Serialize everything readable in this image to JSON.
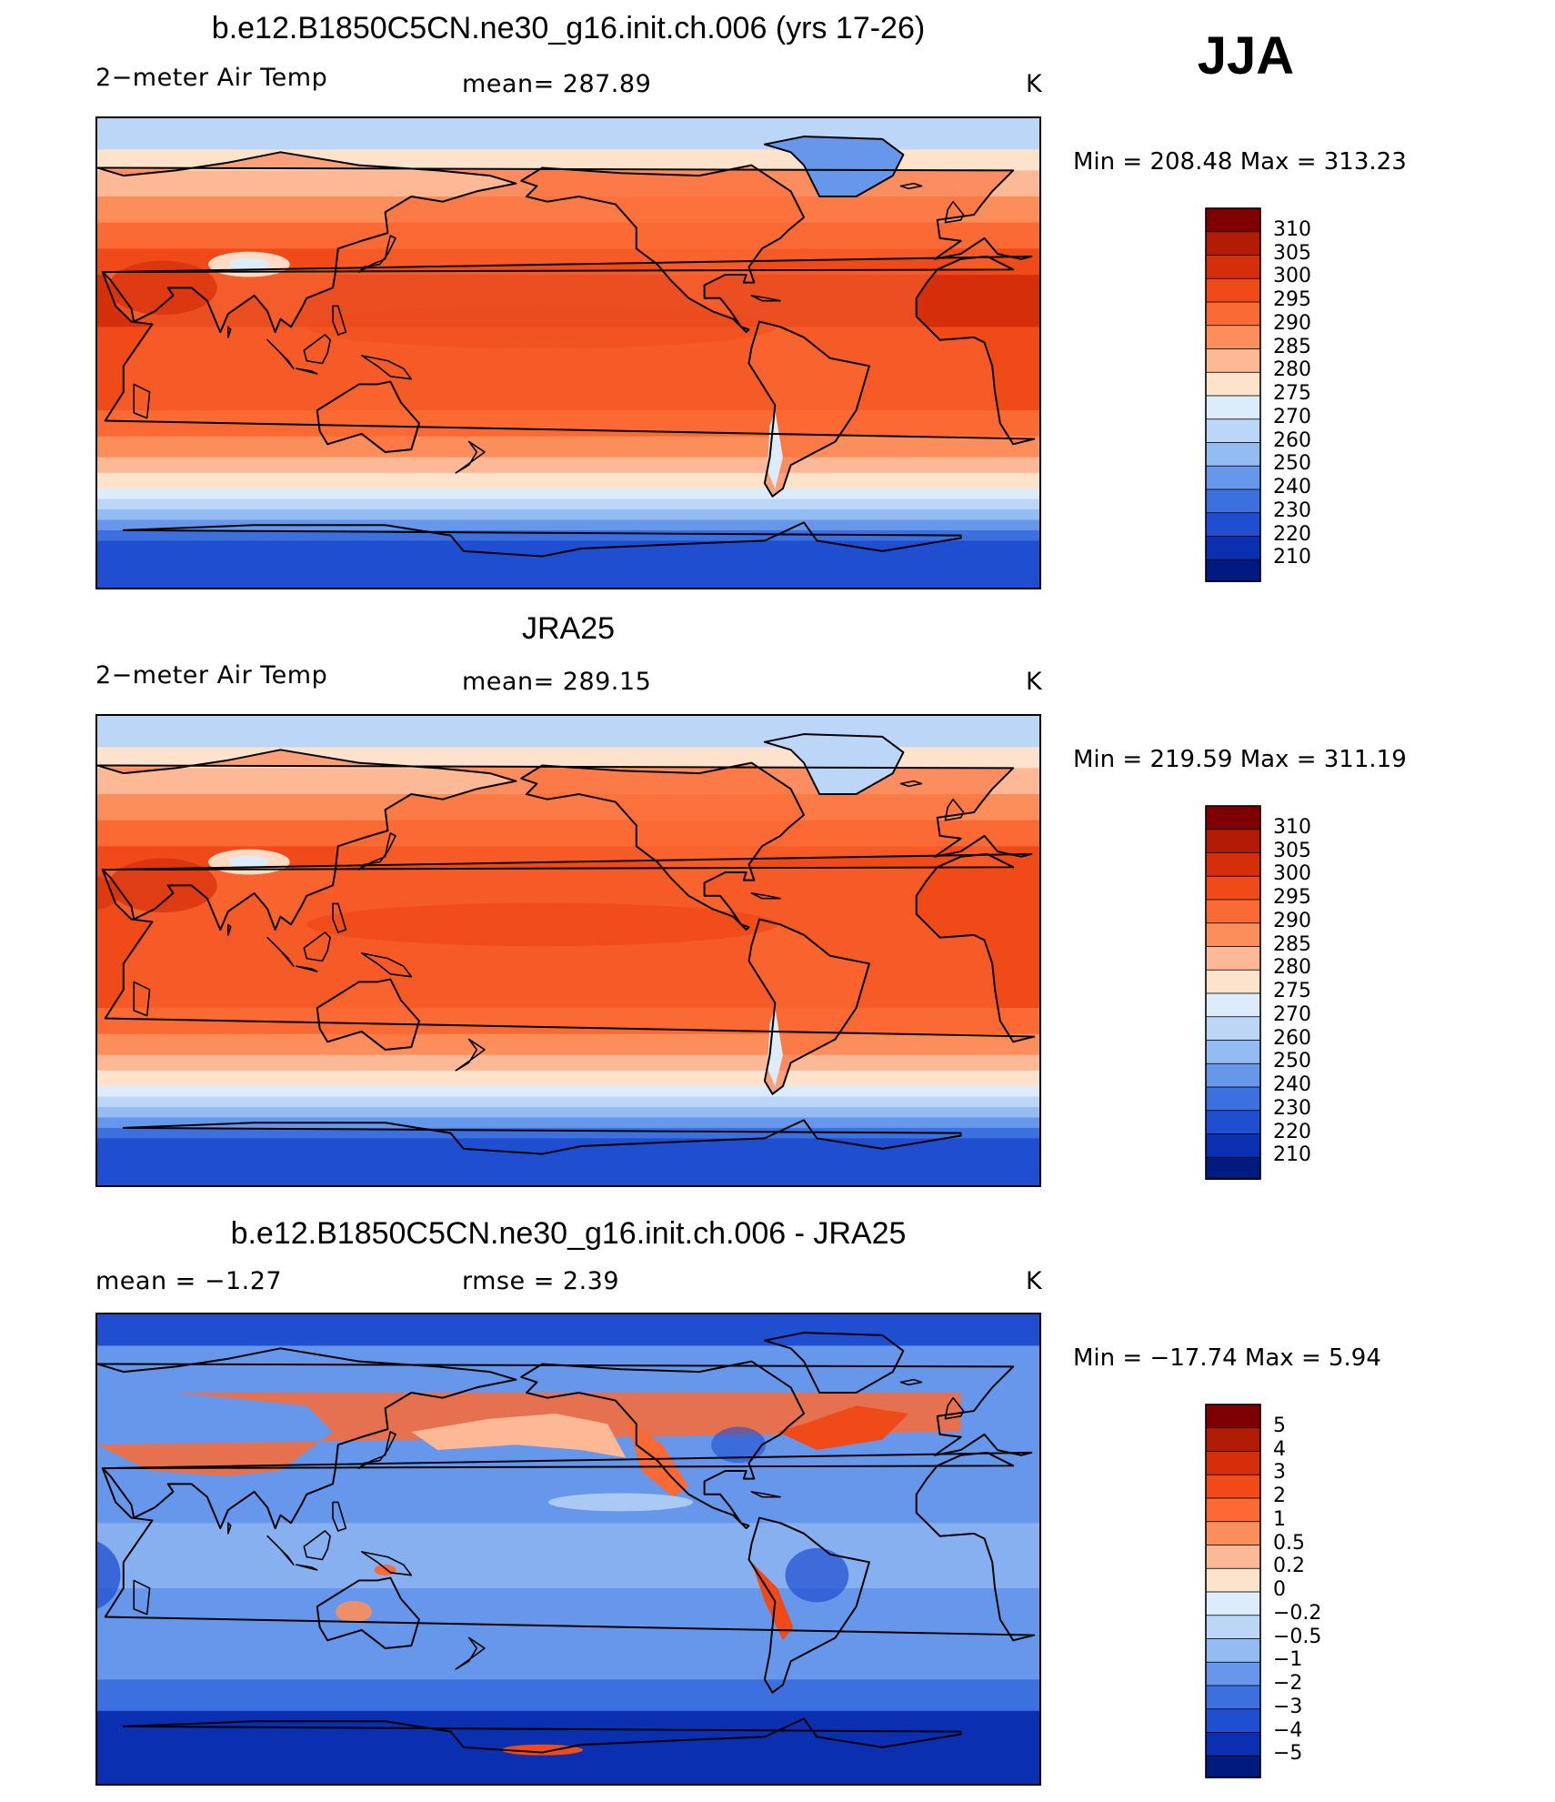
{
  "season": "JJA",
  "panels": [
    {
      "title": "b.e12.B1850C5CN.ne30_g16.init.ch.006 (yrs 17-26)",
      "left_label": "2−meter Air Temp",
      "center_label": "mean=  287.89",
      "right_label": "K",
      "minmax": "Min  =  208.48  Max  =  313.23",
      "colorbar": {
        "labels": [
          "310",
          "305",
          "300",
          "295",
          "290",
          "285",
          "280",
          "275",
          "270",
          "260",
          "250",
          "240",
          "230",
          "220",
          "210"
        ],
        "colors": [
          "#7f0000",
          "#b21b06",
          "#d42e0a",
          "#ef4a18",
          "#fb6a35",
          "#fc8e5c",
          "#fdb996",
          "#fde2cc",
          "#dcecfb",
          "#bcd6f7",
          "#94bbf2",
          "#6797ea",
          "#3d70df",
          "#1f4fd0",
          "#0a2fb0",
          "#001b80"
        ]
      },
      "map_kind": "temp",
      "variant": 0
    },
    {
      "title": "JRA25",
      "left_label": "2−meter Air Temp",
      "center_label": "mean=  289.15",
      "right_label": "K",
      "minmax": "Min  =  219.59  Max  =  311.19",
      "colorbar": {
        "labels": [
          "310",
          "305",
          "300",
          "295",
          "290",
          "285",
          "280",
          "275",
          "270",
          "260",
          "250",
          "240",
          "230",
          "220",
          "210"
        ],
        "colors": [
          "#7f0000",
          "#b21b06",
          "#d42e0a",
          "#ef4a18",
          "#fb6a35",
          "#fc8e5c",
          "#fdb996",
          "#fde2cc",
          "#dcecfb",
          "#bcd6f7",
          "#94bbf2",
          "#6797ea",
          "#3d70df",
          "#1f4fd0",
          "#0a2fb0",
          "#001b80"
        ]
      },
      "map_kind": "temp",
      "variant": 1
    },
    {
      "title": "b.e12.B1850C5CN.ne30_g16.init.ch.006 - JRA25",
      "left_label": "mean  =   −1.27",
      "center_label": "rmse  =     2.39",
      "right_label": "K",
      "minmax": "Min  =  −17.74  Max  =     5.94",
      "colorbar": {
        "labels": [
          "5",
          "4",
          "3",
          "2",
          "1",
          "0.5",
          "0.2",
          "0",
          "−0.2",
          "−0.5",
          "−1",
          "−2",
          "−3",
          "−4",
          "−5"
        ],
        "colors": [
          "#7f0000",
          "#b21b06",
          "#d42e0a",
          "#ef4a18",
          "#fb6a35",
          "#fc8e5c",
          "#fdb996",
          "#fde2cc",
          "#dcecfb",
          "#bcd6f7",
          "#94bbf2",
          "#6797ea",
          "#3d70df",
          "#1f4fd0",
          "#0a2fb0",
          "#001b80"
        ]
      },
      "map_kind": "diff",
      "variant": 2
    }
  ]
}
